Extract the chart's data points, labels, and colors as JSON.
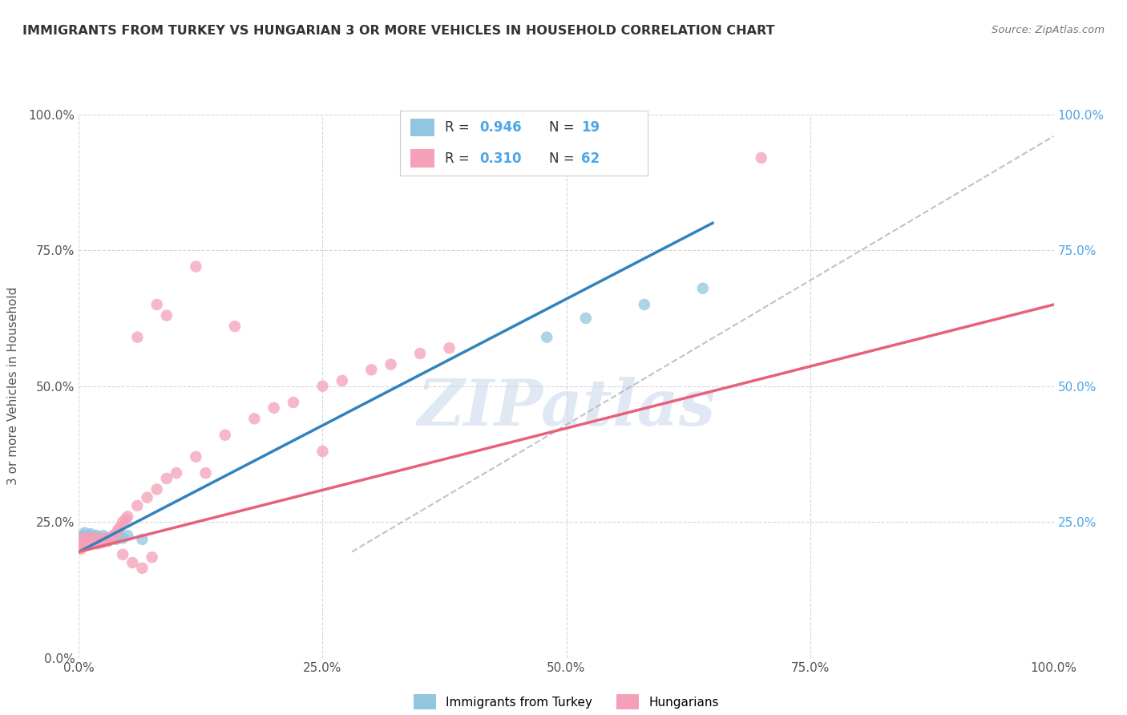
{
  "title": "IMMIGRANTS FROM TURKEY VS HUNGARIAN 3 OR MORE VEHICLES IN HOUSEHOLD CORRELATION CHART",
  "source": "Source: ZipAtlas.com",
  "ylabel": "3 or more Vehicles in Household",
  "xlim": [
    0.0,
    1.0
  ],
  "ylim": [
    0.0,
    1.0
  ],
  "xtick_labels": [
    "0.0%",
    "25.0%",
    "50.0%",
    "75.0%",
    "100.0%"
  ],
  "xtick_vals": [
    0.0,
    0.25,
    0.5,
    0.75,
    1.0
  ],
  "ytick_labels": [
    "0.0%",
    "25.0%",
    "50.0%",
    "75.0%",
    "100.0%"
  ],
  "ytick_vals": [
    0.0,
    0.25,
    0.5,
    0.75,
    1.0
  ],
  "right_ytick_labels": [
    "25.0%",
    "50.0%",
    "75.0%",
    "100.0%"
  ],
  "right_ytick_vals": [
    0.25,
    0.5,
    0.75,
    1.0
  ],
  "color_blue": "#92c5de",
  "color_pink": "#f4a0b8",
  "color_blue_line": "#3182bd",
  "color_pink_line": "#e8607a",
  "color_dashed_line": "#b0b8c8",
  "watermark_text": "ZIPatlas",
  "title_color": "#333333",
  "source_color": "#777777",
  "legend_color": "#4da6e8",
  "blue_scatter_x": [
    0.002,
    0.003,
    0.004,
    0.005,
    0.006,
    0.007,
    0.008,
    0.009,
    0.01,
    0.011,
    0.012,
    0.013,
    0.015,
    0.016,
    0.018,
    0.02,
    0.022,
    0.025,
    0.028,
    0.03,
    0.035,
    0.038,
    0.04,
    0.48,
    0.52,
    0.58,
    0.64,
    0.065,
    0.045,
    0.05
  ],
  "blue_scatter_y": [
    0.215,
    0.22,
    0.225,
    0.21,
    0.23,
    0.218,
    0.222,
    0.215,
    0.225,
    0.22,
    0.228,
    0.215,
    0.222,
    0.218,
    0.225,
    0.222,
    0.218,
    0.225,
    0.22,
    0.215,
    0.222,
    0.218,
    0.225,
    0.59,
    0.625,
    0.65,
    0.68,
    0.218,
    0.22,
    0.225
  ],
  "pink_scatter_x": [
    0.001,
    0.002,
    0.003,
    0.004,
    0.005,
    0.006,
    0.007,
    0.008,
    0.009,
    0.01,
    0.011,
    0.012,
    0.013,
    0.014,
    0.015,
    0.016,
    0.017,
    0.018,
    0.019,
    0.02,
    0.022,
    0.024,
    0.025,
    0.026,
    0.028,
    0.03,
    0.032,
    0.035,
    0.038,
    0.04,
    0.042,
    0.045,
    0.048,
    0.05,
    0.06,
    0.07,
    0.08,
    0.09,
    0.1,
    0.12,
    0.15,
    0.18,
    0.2,
    0.22,
    0.25,
    0.27,
    0.3,
    0.32,
    0.35,
    0.38,
    0.7,
    0.08,
    0.12,
    0.06,
    0.09,
    0.16,
    0.045,
    0.055,
    0.065,
    0.075,
    0.13,
    0.25
  ],
  "pink_scatter_y": [
    0.21,
    0.2,
    0.215,
    0.205,
    0.22,
    0.21,
    0.215,
    0.218,
    0.212,
    0.22,
    0.215,
    0.212,
    0.218,
    0.21,
    0.215,
    0.212,
    0.22,
    0.215,
    0.21,
    0.215,
    0.218,
    0.212,
    0.22,
    0.215,
    0.218,
    0.215,
    0.22,
    0.225,
    0.228,
    0.235,
    0.24,
    0.25,
    0.255,
    0.26,
    0.28,
    0.295,
    0.31,
    0.33,
    0.34,
    0.37,
    0.41,
    0.44,
    0.46,
    0.47,
    0.5,
    0.51,
    0.53,
    0.54,
    0.56,
    0.57,
    0.92,
    0.65,
    0.72,
    0.59,
    0.63,
    0.61,
    0.19,
    0.175,
    0.165,
    0.185,
    0.34,
    0.38
  ],
  "blue_line_x0": 0.0,
  "blue_line_y0": 0.195,
  "blue_line_x1": 0.65,
  "blue_line_y1": 0.8,
  "pink_line_x0": 0.0,
  "pink_line_y0": 0.195,
  "pink_line_x1": 1.0,
  "pink_line_y1": 0.65,
  "dash_line_x0": 0.28,
  "dash_line_y0": 0.195,
  "dash_line_x1": 1.0,
  "dash_line_y1": 0.96
}
